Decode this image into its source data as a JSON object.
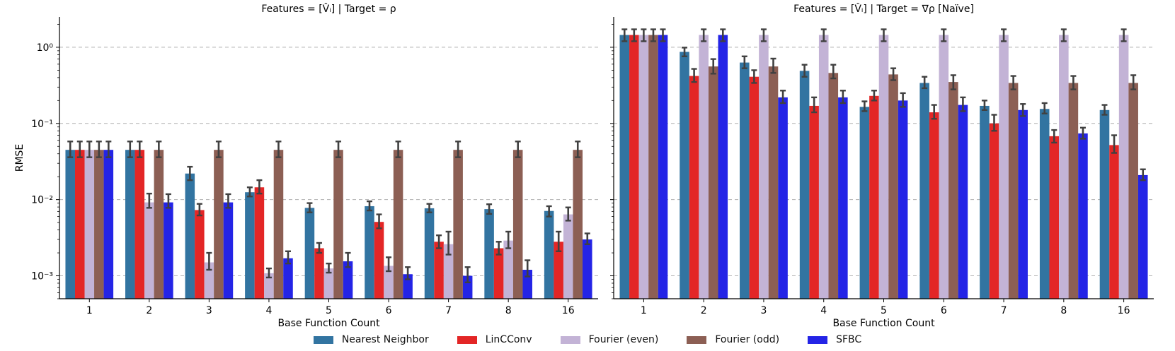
{
  "chart_data": [
    {
      "type": "bar",
      "title": "Features = [V̂ᵢ] | Target = ρ",
      "xlabel": "Base Function Count",
      "ylabel": "RMSE",
      "yscale": "log",
      "ylim": [
        0.0005,
        2.5
      ],
      "yticks": [
        {
          "value": 0.001,
          "label": "10⁻³"
        },
        {
          "value": 0.01,
          "label": "10⁻²"
        },
        {
          "value": 0.1,
          "label": "10⁻¹"
        },
        {
          "value": 1,
          "label": "10⁰"
        }
      ],
      "grid": "horizontal dashed",
      "categories": [
        "1",
        "2",
        "3",
        "4",
        "5",
        "6",
        "7",
        "8",
        "16"
      ],
      "series": [
        {
          "name": "Nearest Neighbor",
          "values": [
            0.045,
            0.045,
            0.022,
            0.0125,
            0.0078,
            0.0082,
            0.0077,
            0.0075,
            0.0071
          ],
          "err_low": [
            0.036,
            0.036,
            0.018,
            0.011,
            0.0068,
            0.0072,
            0.0068,
            0.0065,
            0.006
          ],
          "err_high": [
            0.058,
            0.058,
            0.027,
            0.0145,
            0.009,
            0.0095,
            0.0088,
            0.0087,
            0.0082
          ]
        },
        {
          "name": "LinCConv",
          "values": [
            0.045,
            0.045,
            0.0073,
            0.0145,
            0.0023,
            0.0051,
            0.0028,
            0.0023,
            0.0028
          ],
          "err_low": [
            0.036,
            0.036,
            0.0062,
            0.012,
            0.002,
            0.0042,
            0.0023,
            0.0019,
            0.0021
          ],
          "err_high": [
            0.058,
            0.058,
            0.0088,
            0.018,
            0.0027,
            0.0064,
            0.0034,
            0.0028,
            0.0038
          ]
        },
        {
          "name": "Fourier (even)",
          "values": [
            0.045,
            0.0092,
            0.0015,
            0.00108,
            0.00125,
            0.00135,
            0.0026,
            0.0029,
            0.0064
          ],
          "err_low": [
            0.036,
            0.0078,
            0.0012,
            0.00095,
            0.0011,
            0.00115,
            0.0019,
            0.0023,
            0.0053
          ],
          "err_high": [
            0.058,
            0.012,
            0.002,
            0.00125,
            0.00145,
            0.00175,
            0.0038,
            0.0038,
            0.0079
          ]
        },
        {
          "name": "Fourier (odd)",
          "values": [
            0.045,
            0.045,
            0.045,
            0.045,
            0.045,
            0.045,
            0.045,
            0.045,
            0.045
          ],
          "err_low": [
            0.036,
            0.036,
            0.036,
            0.036,
            0.036,
            0.036,
            0.036,
            0.036,
            0.036
          ],
          "err_high": [
            0.058,
            0.058,
            0.058,
            0.058,
            0.058,
            0.058,
            0.058,
            0.058,
            0.058
          ]
        },
        {
          "name": "SFBC",
          "values": [
            0.045,
            0.0092,
            0.0092,
            0.0017,
            0.00155,
            0.00105,
            0.001,
            0.0012,
            0.003
          ],
          "err_low": [
            0.036,
            0.0078,
            0.0078,
            0.00145,
            0.0013,
            0.0009,
            0.00082,
            0.00098,
            0.0026
          ],
          "err_high": [
            0.058,
            0.0118,
            0.0118,
            0.0021,
            0.002,
            0.0013,
            0.0013,
            0.0016,
            0.0036
          ]
        }
      ]
    },
    {
      "type": "bar",
      "title": "Features = [V̂ᵢ] | Target = ∇ρ [Naïve]",
      "xlabel": "Base Function Count",
      "ylabel": "",
      "yscale": "log",
      "ylim": [
        0.0005,
        2.5
      ],
      "yticks": [
        {
          "value": 0.001,
          "label": ""
        },
        {
          "value": 0.01,
          "label": ""
        },
        {
          "value": 0.1,
          "label": ""
        },
        {
          "value": 1,
          "label": ""
        }
      ],
      "grid": "horizontal dashed",
      "categories": [
        "1",
        "2",
        "3",
        "4",
        "5",
        "6",
        "7",
        "8",
        "16"
      ],
      "series": [
        {
          "name": "Nearest Neighbor",
          "values": [
            1.45,
            0.87,
            0.63,
            0.49,
            0.165,
            0.34,
            0.17,
            0.155,
            0.15
          ],
          "err_low": [
            1.2,
            0.76,
            0.53,
            0.41,
            0.145,
            0.29,
            0.15,
            0.135,
            0.13
          ],
          "err_high": [
            1.72,
            0.99,
            0.76,
            0.59,
            0.195,
            0.41,
            0.2,
            0.185,
            0.175
          ]
        },
        {
          "name": "LinCConv",
          "values": [
            1.45,
            0.42,
            0.41,
            0.17,
            0.23,
            0.14,
            0.1,
            0.068,
            0.052
          ],
          "err_low": [
            1.2,
            0.35,
            0.34,
            0.14,
            0.2,
            0.115,
            0.08,
            0.056,
            0.041
          ],
          "err_high": [
            1.72,
            0.52,
            0.5,
            0.22,
            0.27,
            0.175,
            0.13,
            0.082,
            0.07
          ]
        },
        {
          "name": "Fourier (even)",
          "values": [
            1.45,
            1.45,
            1.45,
            1.45,
            1.45,
            1.45,
            1.45,
            1.45,
            1.45
          ],
          "err_low": [
            1.2,
            1.2,
            1.2,
            1.2,
            1.2,
            1.2,
            1.2,
            1.2,
            1.2
          ],
          "err_high": [
            1.72,
            1.72,
            1.72,
            1.72,
            1.72,
            1.72,
            1.72,
            1.72,
            1.72
          ]
        },
        {
          "name": "Fourier (odd)",
          "values": [
            1.45,
            0.56,
            0.56,
            0.46,
            0.44,
            0.35,
            0.34,
            0.34,
            0.34
          ],
          "err_low": [
            1.2,
            0.45,
            0.46,
            0.39,
            0.37,
            0.28,
            0.28,
            0.28,
            0.28
          ],
          "err_high": [
            1.72,
            0.7,
            0.71,
            0.59,
            0.53,
            0.43,
            0.42,
            0.42,
            0.43
          ]
        },
        {
          "name": "SFBC",
          "values": [
            1.45,
            1.45,
            0.22,
            0.22,
            0.2,
            0.175,
            0.15,
            0.074,
            0.021
          ],
          "err_low": [
            1.2,
            1.2,
            0.185,
            0.185,
            0.165,
            0.145,
            0.125,
            0.063,
            0.018
          ],
          "err_high": [
            1.72,
            1.72,
            0.27,
            0.27,
            0.25,
            0.22,
            0.18,
            0.088,
            0.025
          ]
        }
      ]
    }
  ],
  "legend": {
    "items": [
      {
        "name": "Nearest Neighbor",
        "color": "#3274a1"
      },
      {
        "name": "LinCConv",
        "color": "#e32626"
      },
      {
        "name": "Fourier (even)",
        "color": "#c3b3d6"
      },
      {
        "name": "Fourier (odd)",
        "color": "#8c5f54"
      },
      {
        "name": "SFBC",
        "color": "#2424e6"
      }
    ]
  },
  "colors": {
    "grid": "#b0b0b0",
    "errorbar": "#404040",
    "axis": "#000000"
  }
}
